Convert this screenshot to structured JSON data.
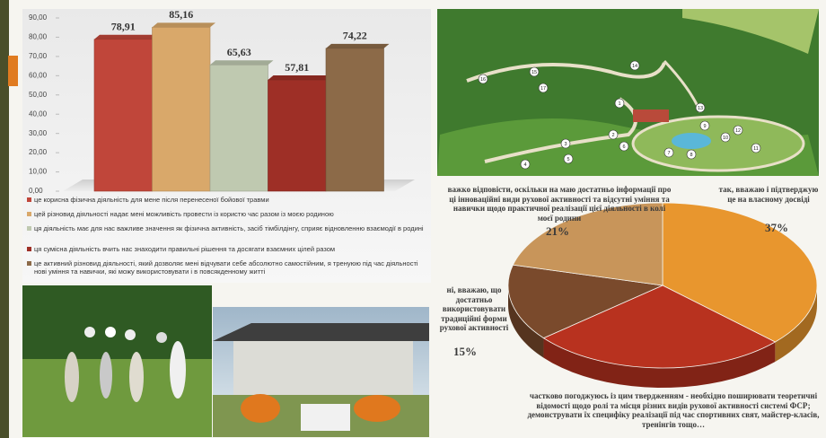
{
  "chart_data": [
    {
      "type": "bar",
      "categories": [
        "це корисна фізична діяльність для мене після перенесеної бойової травми",
        "цей різновид діяльності надає мені можливість провести із користю час разом із моєю родиною",
        "ця діяльність має для нас важливе значення як фізична активність, засіб тімбілдінгу, сприяє відновленню взаємодії в родині",
        "ця сумісна діяльність вчить нас знаходити правильні рішення та досягати взаємних цілей разом",
        "це активний різновид діяльності, який дозволяє мені відчувати себе абсолютно самостійним, я тренуюю під час діяльності нові уміння та навички, які можу використовувати і в повсякденному житті"
      ],
      "values": [
        78.91,
        85.16,
        65.63,
        57.81,
        74.22
      ],
      "value_labels": [
        "78,91",
        "85,16",
        "65,63",
        "57,81",
        "74,22"
      ],
      "colors": [
        "#c0463a",
        "#d9a86a",
        "#bfc9b0",
        "#9e2f26",
        "#8c6a48"
      ],
      "ylim": [
        0,
        90
      ],
      "yticks": [
        {
          "value": 0,
          "label": "0,00"
        },
        {
          "value": 10,
          "label": "10,00"
        },
        {
          "value": 20,
          "label": "20,00"
        },
        {
          "value": 30,
          "label": "30,00"
        },
        {
          "value": 40,
          "label": "40,00"
        },
        {
          "value": 50,
          "label": "50,00"
        },
        {
          "value": 60,
          "label": "60,00"
        },
        {
          "value": 70,
          "label": "70,00"
        },
        {
          "value": 80,
          "label": "80,00"
        },
        {
          "value": 90,
          "label": "90,00"
        }
      ],
      "legend": "bottom"
    },
    {
      "type": "pie",
      "categories": [
        "так, вважаю і підтверджую це на власному досвіді",
        "частково погоджуюсь із цим твердженням - необхідно поширювати теоретичні відомості щодо ролі та місця різних видів рухової активності системі ФСР; демонструвати їх специфіку реалізації під час спортивних свят, майстер-класів, тренінгів тощо…",
        "ні, вважаю, що достатньо використовувати традиційні форми рухової активності",
        "важко відповісти, оскільки на маю достатньо інформації про ці інноваційні види рухової активності та відсутні уміння та навички щодо практичної реалізації цієї діяльності в колі моєї родини"
      ],
      "values": [
        37,
        27,
        15,
        21
      ],
      "value_labels": [
        "37%",
        null,
        "15%",
        "21%"
      ],
      "colors": [
        "#e8962e",
        "#b8321f",
        "#7a4a2c",
        "#c8955a"
      ]
    }
  ],
  "map_markers": [
    "1",
    "2",
    "3",
    "4",
    "5",
    "6",
    "7",
    "8",
    "9",
    "10",
    "11",
    "12",
    "13",
    "14",
    "15",
    "16",
    "17"
  ]
}
